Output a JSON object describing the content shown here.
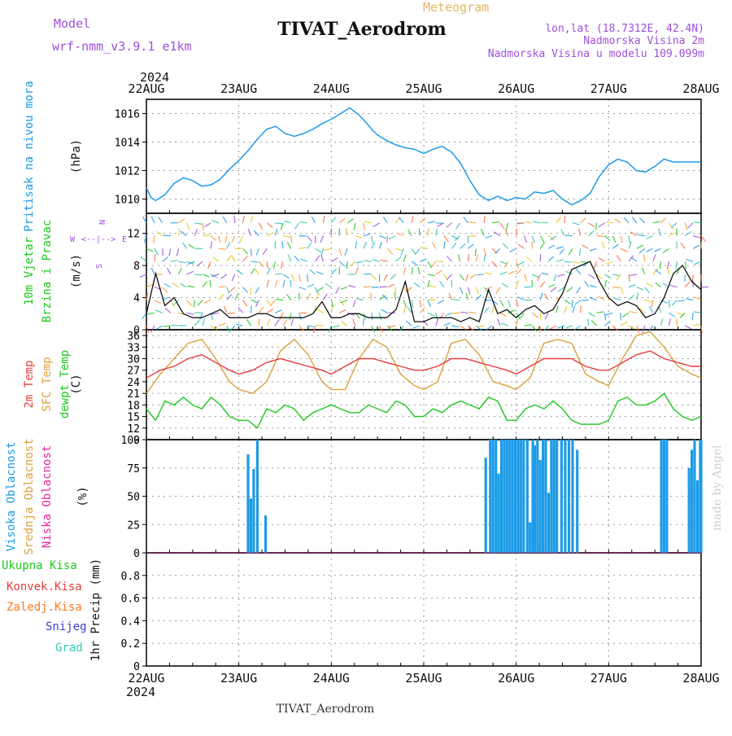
{
  "header": {
    "model_label": "Model",
    "model_name": "wrf-nmm_v3.9.1  e1km",
    "product": "Meteogram",
    "title": "TIVAT_Aerodrom",
    "lonlat": "lon,lat (18.7312E, 42.4N)",
    "elevation": "Nadmorska Visina 2m",
    "model_elevation": "Nadmorska Visina u modelu 109.099m",
    "year_top": "2024",
    "year_bottom": "2024",
    "footer": "TIVAT_Aerodrom",
    "credit": "made by Angel"
  },
  "colors": {
    "pressure": "#1e9be6",
    "wind_label": "#1ec81e",
    "temp": "#e63c3c",
    "sfc_temp": "#dca03c",
    "dewpt": "#1ec81e",
    "high_cloud": "#1e9be6",
    "mid_cloud": "#dca03c",
    "low_cloud": "#e6289b",
    "compass": "#a050dc",
    "header_purple": "#a050dc",
    "header_orange": "#e6b464"
  },
  "chart_data": [
    {
      "type": "line",
      "panel": "pressure",
      "ylabel_side": "Pritisak na nivou mora",
      "ylabel": "(hPa)",
      "ylim": [
        1009,
        1017
      ],
      "yticks": [
        1010,
        1012,
        1014,
        1016
      ],
      "x_ticks": [
        "22AUG",
        "23AUG",
        "24AUG",
        "25AUG",
        "26AUG",
        "27AUG",
        "28AUG"
      ],
      "grid": true,
      "series": [
        {
          "x": [
            0.0,
            0.05,
            0.1,
            0.2,
            0.3,
            0.4,
            0.5,
            0.6,
            0.7,
            0.8,
            0.9,
            1.0,
            1.1,
            1.2,
            1.3,
            1.4,
            1.5,
            1.6,
            1.7,
            1.8,
            1.9,
            2.0,
            2.1,
            2.2,
            2.3,
            2.4,
            2.45,
            2.5,
            2.6,
            2.7,
            2.8,
            2.9,
            3.0,
            3.1,
            3.2,
            3.3,
            3.4,
            3.5,
            3.6,
            3.7,
            3.8,
            3.9,
            4.0,
            4.1,
            4.2,
            4.3,
            4.4,
            4.5,
            4.6,
            4.7,
            4.8,
            4.9,
            5.0,
            5.1,
            5.2,
            5.3,
            5.4,
            5.5,
            5.6,
            5.7,
            5.8,
            5.9,
            6.0
          ],
          "values": [
            1010.8,
            1010.1,
            1009.9,
            1010.3,
            1011.1,
            1011.5,
            1011.3,
            1010.9,
            1011.0,
            1011.4,
            1012.1,
            1012.7,
            1013.4,
            1014.2,
            1014.9,
            1015.1,
            1014.6,
            1014.4,
            1014.6,
            1014.9,
            1015.3,
            1015.6,
            1016.0,
            1016.4,
            1015.9,
            1015.2,
            1014.8,
            1014.5,
            1014.1,
            1013.8,
            1013.6,
            1013.5,
            1013.2,
            1013.5,
            1013.7,
            1013.3,
            1012.5,
            1011.3,
            1010.3,
            1009.9,
            1010.2,
            1009.9,
            1010.1,
            1010.0,
            1010.5,
            1010.4,
            1010.6,
            1010.0,
            1009.6,
            1009.9,
            1010.4,
            1011.6,
            1012.4,
            1012.8,
            1012.6,
            1012.0,
            1011.9,
            1012.3,
            1012.8,
            1012.6,
            1012.6,
            1012.6,
            1012.6
          ]
        }
      ]
    },
    {
      "type": "line",
      "panel": "wind",
      "ylabel_side": [
        "10m Vjetar",
        "Brzina i Pravac"
      ],
      "ylabel": "(m/s)",
      "ylim": [
        0,
        14.5
      ],
      "yticks": [
        0,
        4,
        8,
        12
      ],
      "compass": [
        "N",
        "S",
        "W",
        "E",
        "<--|-->"
      ],
      "series": [
        {
          "name": "speed",
          "x": [
            0.0,
            0.1,
            0.2,
            0.3,
            0.4,
            0.5,
            0.6,
            0.7,
            0.8,
            0.9,
            1.0,
            1.1,
            1.2,
            1.3,
            1.4,
            1.5,
            1.6,
            1.7,
            1.8,
            1.9,
            2.0,
            2.1,
            2.2,
            2.3,
            2.4,
            2.5,
            2.6,
            2.7,
            2.8,
            2.9,
            3.0,
            3.1,
            3.2,
            3.3,
            3.4,
            3.5,
            3.6,
            3.7,
            3.8,
            3.9,
            4.0,
            4.1,
            4.2,
            4.3,
            4.4,
            4.5,
            4.6,
            4.7,
            4.8,
            4.9,
            5.0,
            5.1,
            5.2,
            5.3,
            5.4,
            5.5,
            5.6,
            5.7,
            5.8,
            5.9,
            6.0
          ],
          "values": [
            2,
            7,
            3,
            4,
            2,
            1.5,
            1.5,
            2,
            2.5,
            1.5,
            1.5,
            1.5,
            2,
            2,
            1.5,
            1.5,
            1.5,
            1.5,
            2,
            3.5,
            1.5,
            1.5,
            2,
            2,
            1.5,
            1.5,
            1.5,
            2.5,
            6,
            1,
            1,
            1.5,
            1.5,
            1.5,
            1,
            1.5,
            1,
            5,
            2,
            2.5,
            1.5,
            2.5,
            3,
            2,
            2.5,
            4.5,
            7.5,
            8,
            8.5,
            6,
            4,
            3,
            3.5,
            3,
            1.5,
            2,
            4,
            7,
            8,
            6,
            5
          ]
        }
      ]
    },
    {
      "type": "line",
      "panel": "temperature",
      "ylabel_side": [
        "2m Temp",
        "SFC Temp",
        "dewpt Temp"
      ],
      "ylabel": "(C)",
      "ylim": [
        9,
        37.5
      ],
      "yticks": [
        9,
        12,
        15,
        18,
        21,
        24,
        27,
        30,
        33,
        36
      ],
      "series": [
        {
          "name": "2m Temp",
          "x": [
            0.0,
            0.15,
            0.3,
            0.45,
            0.6,
            0.75,
            0.9,
            1.0,
            1.15,
            1.3,
            1.45,
            1.6,
            1.75,
            1.9,
            2.0,
            2.15,
            2.3,
            2.45,
            2.6,
            2.75,
            2.9,
            3.0,
            3.15,
            3.3,
            3.45,
            3.6,
            3.75,
            3.9,
            4.0,
            4.15,
            4.3,
            4.45,
            4.6,
            4.75,
            4.9,
            5.0,
            5.15,
            5.3,
            5.45,
            5.6,
            5.75,
            5.9,
            6.0
          ],
          "values": [
            25,
            27,
            28,
            30,
            31,
            29,
            27,
            26,
            27,
            29,
            30,
            29,
            28,
            27,
            26,
            28,
            30,
            30,
            29,
            28,
            27,
            27,
            28,
            30,
            30,
            29,
            28,
            27,
            26,
            28,
            30,
            30,
            30,
            28,
            27,
            27,
            29,
            31,
            32,
            30,
            29,
            28,
            28
          ]
        },
        {
          "name": "SFC Temp",
          "x": [
            0.0,
            0.15,
            0.3,
            0.45,
            0.6,
            0.75,
            0.9,
            1.0,
            1.15,
            1.3,
            1.45,
            1.6,
            1.75,
            1.9,
            2.0,
            2.15,
            2.3,
            2.45,
            2.6,
            2.75,
            2.9,
            3.0,
            3.15,
            3.3,
            3.45,
            3.6,
            3.75,
            3.9,
            4.0,
            4.15,
            4.3,
            4.45,
            4.6,
            4.75,
            4.9,
            5.0,
            5.15,
            5.3,
            5.45,
            5.6,
            5.75,
            5.9,
            6.0
          ],
          "values": [
            21,
            26,
            30,
            34,
            35,
            30,
            24,
            22,
            21,
            24,
            32,
            35,
            31,
            24,
            22,
            22,
            30,
            35,
            33,
            26,
            23,
            22,
            24,
            34,
            35,
            31,
            24,
            23,
            22,
            25,
            34,
            35,
            34,
            26,
            24,
            23,
            30,
            36,
            37,
            33,
            28,
            26,
            25
          ]
        },
        {
          "name": "dewpt Temp",
          "x": [
            0.0,
            0.1,
            0.2,
            0.3,
            0.4,
            0.5,
            0.6,
            0.7,
            0.8,
            0.9,
            1.0,
            1.1,
            1.2,
            1.3,
            1.4,
            1.5,
            1.6,
            1.7,
            1.8,
            1.9,
            2.0,
            2.1,
            2.2,
            2.3,
            2.4,
            2.5,
            2.6,
            2.7,
            2.8,
            2.9,
            3.0,
            3.1,
            3.2,
            3.3,
            3.4,
            3.5,
            3.6,
            3.7,
            3.8,
            3.9,
            4.0,
            4.1,
            4.2,
            4.3,
            4.4,
            4.5,
            4.6,
            4.7,
            4.8,
            4.9,
            5.0,
            5.1,
            5.2,
            5.3,
            5.4,
            5.5,
            5.6,
            5.7,
            5.8,
            5.9,
            6.0
          ],
          "values": [
            17,
            14,
            19,
            18,
            20,
            18,
            17,
            20,
            18,
            15,
            14,
            14,
            12,
            17,
            16,
            18,
            17,
            14,
            16,
            17,
            18,
            17,
            16,
            16,
            18,
            17,
            16,
            19,
            18,
            15,
            15,
            17,
            16,
            18,
            19,
            18,
            17,
            20,
            19,
            14,
            14,
            17,
            18,
            17,
            19,
            17,
            14,
            13,
            13,
            13,
            14,
            19,
            20,
            18,
            18,
            19,
            21,
            17,
            15,
            14,
            15
          ]
        }
      ]
    },
    {
      "type": "bar",
      "panel": "clouds",
      "ylabel_side": [
        "Visoka Oblacnost",
        "Srednja Oblacnost",
        "Niska Oblacnost"
      ],
      "ylabel": "(%)",
      "ylim": [
        0,
        100
      ],
      "yticks": [
        0,
        25,
        50,
        75,
        100
      ],
      "series": [
        {
          "name": "Visoka Oblacnost",
          "x": [
            1.1,
            1.13,
            1.16,
            1.2,
            1.29,
            3.67,
            3.72,
            3.75,
            3.78,
            3.81,
            3.84,
            3.87,
            3.9,
            3.93,
            3.96,
            3.99,
            4.02,
            4.05,
            4.08,
            4.12,
            4.15,
            4.18,
            4.2,
            4.23,
            4.26,
            4.29,
            4.32,
            4.35,
            4.38,
            4.41,
            4.44,
            4.49,
            4.53,
            4.57,
            4.61,
            4.66,
            4.69,
            4.72,
            4.75,
            4.79,
            4.85,
            4.88,
            4.91,
            4.95,
            4.99,
            5.02,
            5.06,
            5.09,
            5.14,
            5.19,
            5.23,
            5.57,
            5.6,
            5.63,
            5.87,
            5.9,
            5.93,
            5.96,
            5.99,
            6.0
          ],
          "values": [
            87,
            48,
            74,
            100,
            33,
            84,
            100,
            100,
            100,
            70,
            100,
            100,
            100,
            100,
            100,
            100,
            100,
            100,
            100,
            100,
            27,
            100,
            95,
            100,
            82,
            100,
            100,
            53,
            100,
            100,
            100,
            100,
            100,
            100,
            100,
            91,
            0,
            0,
            0,
            0,
            0,
            0,
            0,
            0,
            0,
            0,
            0,
            0,
            0,
            0,
            0,
            100,
            100,
            100,
            75,
            91,
            100,
            64,
            100,
            100
          ]
        }
      ]
    },
    {
      "type": "line",
      "panel": "precipitation",
      "ylabel_side": [
        "Ukupna Kisa",
        "Konvek.Kisa",
        "Zaledj.Kisa",
        "Snijeg",
        "Grad"
      ],
      "ylabel": "1hr Precip (mm)",
      "ylim": [
        0,
        1
      ],
      "yticks": [
        "0",
        "0.2",
        "0.4",
        "0.6",
        "0.8"
      ],
      "series": []
    }
  ]
}
